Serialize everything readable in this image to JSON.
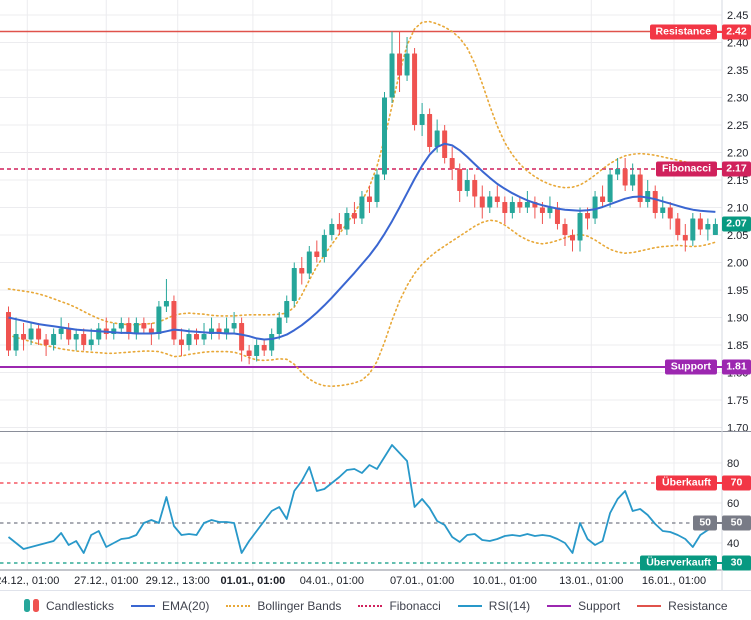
{
  "colors": {
    "up": "#26a69a",
    "down": "#ef5350",
    "ema": "#3a66d1",
    "bollinger": "#e8a838",
    "fibonacci": "#d0215c",
    "support": "#9c27b0",
    "resistance_line": "#e0524b",
    "resistance_label": "#f23645",
    "rsi": "#2898c9",
    "grid": "#ececef",
    "axis_text": "#1c1f27",
    "separator": "#8a8e99",
    "axis_border": "#d6d9e0",
    "last_price": "#089981",
    "neutral": "#787b86",
    "oversold": "#089981",
    "overbought": "#f23645"
  },
  "price_levels": [
    {
      "label": "Resistance",
      "value": "2.42",
      "price": 2.42,
      "color": "#f23645",
      "line_color": "#e0524b",
      "style": "solid"
    },
    {
      "label": "Fibonacci",
      "value": "2.17",
      "price": 2.17,
      "color": "#d0215c",
      "line_color": "#d0215c",
      "style": "dashed"
    },
    {
      "label": "Support",
      "value": "1.81",
      "price": 1.81,
      "color": "#9c27b0",
      "line_color": "#9c27b0",
      "style": "solid"
    }
  ],
  "rsi_levels": [
    {
      "label": "Überkauft",
      "value": "70",
      "level": 70,
      "color": "#f23645",
      "style": "dashed"
    },
    {
      "label": "50",
      "value": "50",
      "level": 50,
      "color": "#787b86",
      "style": "dashed"
    },
    {
      "label": "Überverkauft",
      "value": "30",
      "level": 30,
      "color": "#089981",
      "style": "dashed"
    }
  ],
  "last_price": {
    "value": "2.07",
    "price": 2.07,
    "color": "#089981"
  },
  "legend": {
    "items": [
      {
        "label": "Candlesticks",
        "style": "candles"
      },
      {
        "label": "EMA(20)",
        "style": "solid",
        "color": "#3a66d1"
      },
      {
        "label": "Bollinger Bands",
        "style": "dotted",
        "color": "#e8a838"
      },
      {
        "label": "Fibonacci",
        "style": "dotted",
        "color": "#d0215c"
      },
      {
        "label": "RSI(14)",
        "style": "solid",
        "color": "#2898c9"
      },
      {
        "label": "Support",
        "style": "solid",
        "color": "#9c27b0"
      },
      {
        "label": "Resistance",
        "style": "solid",
        "color": "#e0524b"
      }
    ]
  },
  "chart_data": {
    "type": "candlestick",
    "price_panel": {
      "ylim": [
        1.7,
        2.45
      ],
      "tick_step": 0.05,
      "ticks": [
        2.45,
        2.4,
        2.35,
        2.3,
        2.25,
        2.2,
        2.15,
        2.1,
        2.05,
        2.0,
        1.95,
        1.9,
        1.85,
        1.8,
        1.75,
        1.7
      ]
    },
    "rsi_panel": {
      "ylim": [
        25,
        92
      ],
      "ticks": [
        80,
        70,
        60,
        50,
        40,
        30
      ],
      "grid": [
        80,
        60,
        40
      ]
    },
    "time_ticks": [
      {
        "label": "24.12., 01:00",
        "index": 2.5,
        "bold": false
      },
      {
        "label": "27.12., 01:00",
        "index": 13,
        "bold": false
      },
      {
        "label": "29.12., 13:00",
        "index": 22.5,
        "bold": false
      },
      {
        "label": "01.01., 01:00",
        "index": 32.5,
        "bold": true
      },
      {
        "label": "04.01., 01:00",
        "index": 43,
        "bold": false
      },
      {
        "label": "07.01., 01:00",
        "index": 55,
        "bold": false
      },
      {
        "label": "10.01., 01:00",
        "index": 66,
        "bold": false
      },
      {
        "label": "13.01., 01:00",
        "index": 77.5,
        "bold": false
      },
      {
        "label": "16.01., 01:00",
        "index": 88.5,
        "bold": false
      }
    ],
    "candles": [
      [
        1.91,
        1.92,
        1.83,
        1.84
      ],
      [
        1.84,
        1.9,
        1.83,
        1.87
      ],
      [
        1.87,
        1.89,
        1.84,
        1.86
      ],
      [
        1.86,
        1.89,
        1.85,
        1.88
      ],
      [
        1.88,
        1.89,
        1.85,
        1.86
      ],
      [
        1.86,
        1.87,
        1.83,
        1.85
      ],
      [
        1.85,
        1.88,
        1.84,
        1.87
      ],
      [
        1.87,
        1.9,
        1.86,
        1.88
      ],
      [
        1.88,
        1.89,
        1.85,
        1.86
      ],
      [
        1.86,
        1.88,
        1.84,
        1.87
      ],
      [
        1.87,
        1.88,
        1.84,
        1.85
      ],
      [
        1.85,
        1.88,
        1.84,
        1.86
      ],
      [
        1.86,
        1.89,
        1.85,
        1.88
      ],
      [
        1.88,
        1.9,
        1.86,
        1.87
      ],
      [
        1.87,
        1.89,
        1.86,
        1.88
      ],
      [
        1.88,
        1.9,
        1.87,
        1.89
      ],
      [
        1.89,
        1.9,
        1.86,
        1.87
      ],
      [
        1.87,
        1.9,
        1.86,
        1.89
      ],
      [
        1.89,
        1.9,
        1.87,
        1.88
      ],
      [
        1.88,
        1.89,
        1.85,
        1.87
      ],
      [
        1.87,
        1.93,
        1.86,
        1.92
      ],
      [
        1.92,
        1.97,
        1.91,
        1.93
      ],
      [
        1.93,
        1.94,
        1.85,
        1.86
      ],
      [
        1.86,
        1.88,
        1.83,
        1.85
      ],
      [
        1.85,
        1.88,
        1.84,
        1.87
      ],
      [
        1.87,
        1.88,
        1.85,
        1.86
      ],
      [
        1.86,
        1.89,
        1.85,
        1.87
      ],
      [
        1.87,
        1.9,
        1.86,
        1.88
      ],
      [
        1.88,
        1.89,
        1.86,
        1.87
      ],
      [
        1.87,
        1.9,
        1.86,
        1.88
      ],
      [
        1.88,
        1.91,
        1.87,
        1.89
      ],
      [
        1.89,
        1.9,
        1.82,
        1.84
      ],
      [
        1.84,
        1.85,
        1.815,
        1.83
      ],
      [
        1.83,
        1.86,
        1.82,
        1.85
      ],
      [
        1.85,
        1.86,
        1.83,
        1.84
      ],
      [
        1.84,
        1.88,
        1.83,
        1.87
      ],
      [
        1.87,
        1.91,
        1.86,
        1.9
      ],
      [
        1.9,
        1.94,
        1.89,
        1.93
      ],
      [
        1.93,
        2.0,
        1.92,
        1.99
      ],
      [
        1.99,
        2.01,
        1.96,
        1.98
      ],
      [
        1.98,
        2.03,
        1.97,
        2.02
      ],
      [
        2.02,
        2.04,
        2.0,
        2.01
      ],
      [
        2.01,
        2.06,
        2.0,
        2.05
      ],
      [
        2.05,
        2.08,
        2.04,
        2.07
      ],
      [
        2.07,
        2.09,
        2.05,
        2.06
      ],
      [
        2.06,
        2.1,
        2.05,
        2.09
      ],
      [
        2.09,
        2.11,
        2.07,
        2.08
      ],
      [
        2.08,
        2.13,
        2.07,
        2.12
      ],
      [
        2.12,
        2.14,
        2.09,
        2.11
      ],
      [
        2.11,
        2.17,
        2.1,
        2.16
      ],
      [
        2.16,
        2.31,
        2.15,
        2.3
      ],
      [
        2.3,
        2.42,
        2.29,
        2.38
      ],
      [
        2.38,
        2.42,
        2.31,
        2.34
      ],
      [
        2.34,
        2.41,
        2.33,
        2.38
      ],
      [
        2.38,
        2.39,
        2.24,
        2.25
      ],
      [
        2.25,
        2.29,
        2.23,
        2.27
      ],
      [
        2.27,
        2.28,
        2.2,
        2.21
      ],
      [
        2.21,
        2.26,
        2.2,
        2.24
      ],
      [
        2.24,
        2.25,
        2.18,
        2.19
      ],
      [
        2.19,
        2.21,
        2.15,
        2.17
      ],
      [
        2.17,
        2.18,
        2.11,
        2.13
      ],
      [
        2.13,
        2.17,
        2.12,
        2.15
      ],
      [
        2.15,
        2.16,
        2.1,
        2.12
      ],
      [
        2.12,
        2.14,
        2.08,
        2.1
      ],
      [
        2.1,
        2.13,
        2.09,
        2.12
      ],
      [
        2.12,
        2.14,
        2.1,
        2.11
      ],
      [
        2.11,
        2.12,
        2.07,
        2.09
      ],
      [
        2.09,
        2.12,
        2.08,
        2.11
      ],
      [
        2.11,
        2.12,
        2.09,
        2.1
      ],
      [
        2.1,
        2.13,
        2.09,
        2.11
      ],
      [
        2.11,
        2.12,
        2.08,
        2.1
      ],
      [
        2.1,
        2.11,
        2.07,
        2.09
      ],
      [
        2.09,
        2.12,
        2.08,
        2.1
      ],
      [
        2.1,
        2.11,
        2.06,
        2.07
      ],
      [
        2.07,
        2.08,
        2.03,
        2.05
      ],
      [
        2.05,
        2.06,
        2.02,
        2.04
      ],
      [
        2.04,
        2.1,
        2.02,
        2.09
      ],
      [
        2.09,
        2.1,
        2.06,
        2.08
      ],
      [
        2.08,
        2.13,
        2.07,
        2.12
      ],
      [
        2.12,
        2.14,
        2.1,
        2.11
      ],
      [
        2.11,
        2.17,
        2.1,
        2.16
      ],
      [
        2.16,
        2.19,
        2.15,
        2.17
      ],
      [
        2.17,
        2.19,
        2.13,
        2.14
      ],
      [
        2.14,
        2.18,
        2.13,
        2.16
      ],
      [
        2.16,
        2.17,
        2.1,
        2.11
      ],
      [
        2.11,
        2.15,
        2.1,
        2.13
      ],
      [
        2.13,
        2.14,
        2.08,
        2.09
      ],
      [
        2.09,
        2.12,
        2.08,
        2.1
      ],
      [
        2.1,
        2.11,
        2.06,
        2.08
      ],
      [
        2.08,
        2.09,
        2.04,
        2.05
      ],
      [
        2.05,
        2.07,
        2.02,
        2.04
      ],
      [
        2.04,
        2.09,
        2.03,
        2.08
      ],
      [
        2.08,
        2.09,
        2.05,
        2.06
      ],
      [
        2.06,
        2.08,
        2.04,
        2.07
      ],
      [
        2.05,
        2.08,
        2.05,
        2.07
      ]
    ],
    "series": [
      {
        "name": "EMA(20)",
        "values": [
          1.9,
          1.897,
          1.894,
          1.891,
          1.888,
          1.886,
          1.884,
          1.882,
          1.88,
          1.878,
          1.877,
          1.876,
          1.875,
          1.874,
          1.873,
          1.872,
          1.872,
          1.871,
          1.871,
          1.871,
          1.872,
          1.875,
          1.878,
          1.877,
          1.875,
          1.874,
          1.873,
          1.872,
          1.872,
          1.871,
          1.871,
          1.869,
          1.866,
          1.862,
          1.86,
          1.861,
          1.864,
          1.869,
          1.877,
          1.886,
          1.897,
          1.909,
          1.922,
          1.936,
          1.951,
          1.966,
          1.981,
          1.997,
          2.013,
          2.031,
          2.052,
          2.075,
          2.1,
          2.126,
          2.152,
          2.176,
          2.196,
          2.21,
          2.216,
          2.213,
          2.204,
          2.192,
          2.179,
          2.166,
          2.154,
          2.143,
          2.134,
          2.126,
          2.119,
          2.113,
          2.108,
          2.104,
          2.101,
          2.098,
          2.096,
          2.095,
          2.094,
          2.095,
          2.097,
          2.101,
          2.106,
          2.111,
          2.116,
          2.119,
          2.12,
          2.118,
          2.115,
          2.111,
          2.107,
          2.103,
          2.099,
          2.096,
          2.094,
          2.093,
          2.092
        ]
      },
      {
        "name": "Bollinger Upper",
        "values": [
          1.952,
          1.95,
          1.948,
          1.946,
          1.943,
          1.939,
          1.934,
          1.929,
          1.924,
          1.918,
          1.911,
          1.904,
          1.898,
          1.893,
          1.89,
          1.888,
          1.887,
          1.887,
          1.888,
          1.889,
          1.892,
          1.898,
          1.904,
          1.907,
          1.908,
          1.907,
          1.906,
          1.904,
          1.903,
          1.903,
          1.903,
          1.904,
          1.905,
          1.905,
          1.905,
          1.905,
          1.906,
          1.908,
          1.919,
          1.941,
          1.968,
          1.993,
          2.014,
          2.033,
          2.052,
          2.071,
          2.091,
          2.112,
          2.138,
          2.175,
          2.225,
          2.285,
          2.345,
          2.395,
          2.425,
          2.437,
          2.438,
          2.434,
          2.428,
          2.42,
          2.408,
          2.39,
          2.362,
          2.325,
          2.285,
          2.248,
          2.218,
          2.196,
          2.179,
          2.166,
          2.156,
          2.148,
          2.142,
          2.138,
          2.136,
          2.137,
          2.141,
          2.149,
          2.159,
          2.17,
          2.18,
          2.188,
          2.194,
          2.197,
          2.198,
          2.197,
          2.195,
          2.192,
          2.189,
          2.186,
          2.183,
          2.18,
          2.177,
          2.174,
          2.172
        ]
      },
      {
        "name": "Bollinger Lower",
        "values": [
          1.868,
          1.864,
          1.86,
          1.856,
          1.852,
          1.849,
          1.846,
          1.843,
          1.841,
          1.839,
          1.838,
          1.837,
          1.836,
          1.835,
          1.835,
          1.836,
          1.837,
          1.838,
          1.839,
          1.839,
          1.838,
          1.834,
          1.829,
          1.83,
          1.833,
          1.835,
          1.837,
          1.838,
          1.838,
          1.838,
          1.837,
          1.833,
          1.827,
          1.823,
          1.822,
          1.823,
          1.825,
          1.824,
          1.815,
          1.8,
          1.788,
          1.78,
          1.776,
          1.775,
          1.776,
          1.778,
          1.781,
          1.786,
          1.798,
          1.82,
          1.855,
          1.895,
          1.93,
          1.958,
          1.98,
          1.997,
          2.01,
          2.021,
          2.03,
          2.039,
          2.048,
          2.057,
          2.066,
          2.073,
          2.077,
          2.075,
          2.068,
          2.058,
          2.048,
          2.041,
          2.036,
          2.034,
          2.036,
          2.04,
          2.045,
          2.049,
          2.051,
          2.048,
          2.041,
          2.032,
          2.024,
          2.019,
          2.017,
          2.018,
          2.021,
          2.024,
          2.027,
          2.029,
          2.03,
          2.031,
          2.03,
          2.029,
          2.03,
          2.033,
          2.037
        ]
      },
      {
        "name": "RSI(14)",
        "values": [
          43,
          40,
          37,
          38,
          39,
          40,
          41,
          45,
          39,
          41,
          35,
          44,
          46,
          38,
          40,
          42,
          42.5,
          44,
          50,
          51.5,
          50,
          63,
          48.5,
          44,
          44.5,
          44,
          50,
          51.5,
          50.5,
          50.5,
          50,
          35,
          41,
          46,
          51,
          56,
          58,
          52,
          66,
          71,
          78,
          66,
          67,
          70,
          73,
          76.5,
          77,
          75,
          79,
          77,
          83,
          89,
          85,
          81,
          58,
          62,
          57.5,
          51,
          49,
          43,
          40.5,
          44,
          44.5,
          41.5,
          41,
          42,
          43.5,
          44,
          43.5,
          44.5,
          43.5,
          44,
          43.5,
          42,
          40,
          35,
          50,
          42,
          39,
          41,
          55,
          62,
          66,
          56,
          57,
          54,
          49.5,
          46,
          45.5,
          44,
          42,
          38,
          44,
          46.5,
          48
        ]
      }
    ]
  }
}
